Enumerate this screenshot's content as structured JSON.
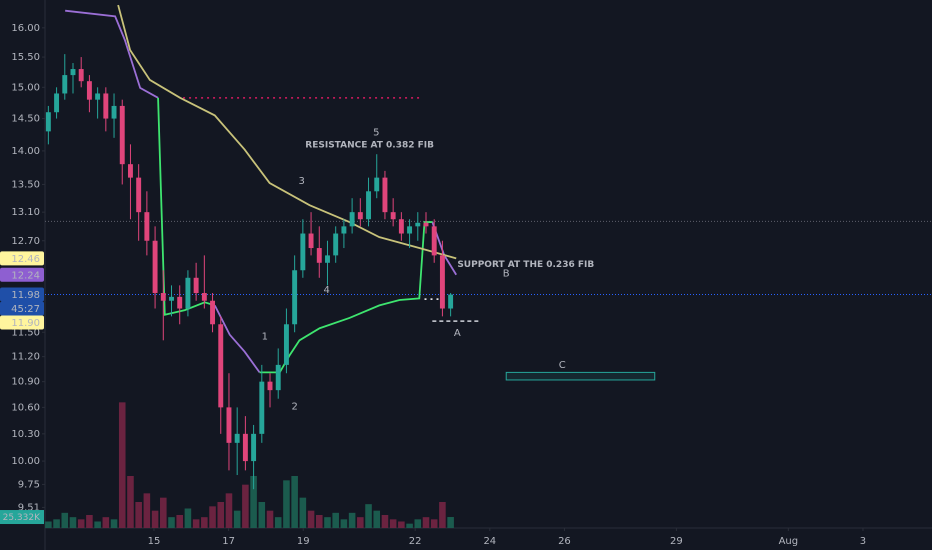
{
  "chart_data": {
    "type": "candlestick",
    "log_scale": true,
    "grid": false,
    "ylim": [
      9.3,
      16.49
    ],
    "yticks": [
      {
        "value": 16,
        "label": "16.00"
      },
      {
        "value": 15.5,
        "label": "15.50"
      },
      {
        "value": 15,
        "label": "15.00"
      },
      {
        "value": 14.5,
        "label": "14.50"
      },
      {
        "value": 14,
        "label": "14.00"
      },
      {
        "value": 13.5,
        "label": "13.50"
      },
      {
        "value": 13.1,
        "label": "13.10"
      },
      {
        "value": 12.7,
        "label": "12.70"
      },
      {
        "value": 11.5,
        "label": "11.50"
      },
      {
        "value": 11.2,
        "label": "11.20"
      },
      {
        "value": 10.9,
        "label": "10.90"
      },
      {
        "value": 10.6,
        "label": "10.60"
      },
      {
        "value": 10.3,
        "label": "10.30"
      },
      {
        "value": 10,
        "label": "10.00"
      },
      9.75,
      9.51
    ],
    "xlim": [
      -2.92,
      20.85
    ],
    "xticks": [
      {
        "value": 0,
        "label": "15"
      },
      {
        "value": 2,
        "label": "17"
      },
      {
        "value": 4,
        "label": "19"
      },
      {
        "value": 7,
        "label": "22"
      },
      {
        "value": 9,
        "label": "24"
      },
      {
        "value": 11,
        "label": "26"
      },
      {
        "value": 14,
        "label": "29"
      },
      {
        "value": 17,
        "label": "Aug"
      },
      {
        "value": 19,
        "label": "3"
      }
    ],
    "up_color": "#26a69a",
    "down_color": "#e0457b",
    "volume_up_color": "#1b5b4e",
    "volume_down_color": "#6b2340",
    "vlim": [
      0,
      300
    ],
    "x": [
      -2.83,
      -2.61,
      -2.39,
      -2.17,
      -1.95,
      -1.73,
      -1.51,
      -1.29,
      -1.07,
      -0.85,
      -0.63,
      -0.41,
      -0.19,
      0.03,
      0.25,
      0.47,
      0.69,
      0.91,
      1.13,
      1.35,
      1.57,
      1.79,
      2.01,
      2.23,
      2.45,
      2.67,
      2.89,
      3.11,
      3.33,
      3.55,
      3.77,
      3.99,
      4.21,
      4.43,
      4.65,
      4.87,
      5.09,
      5.31,
      5.53,
      5.75,
      5.97,
      6.19,
      6.41,
      6.63,
      6.85,
      7.07,
      7.29,
      7.51,
      7.73,
      7.95
    ],
    "open": [
      14.3,
      14.6,
      14.9,
      15.2,
      15.3,
      15.1,
      14.8,
      14.9,
      14.5,
      14.7,
      13.8,
      13.6,
      13.1,
      12.7,
      12.0,
      11.9,
      11.95,
      11.8,
      12.2,
      12.0,
      11.9,
      11.6,
      10.6,
      10.2,
      10.3,
      10.0,
      10.3,
      10.9,
      10.8,
      11.1,
      11.6,
      12.3,
      12.8,
      12.6,
      12.4,
      12.5,
      12.8,
      12.9,
      13.1,
      13.0,
      13.4,
      13.6,
      13.1,
      13.0,
      12.8,
      12.9,
      12.95,
      12.9,
      12.5,
      11.8
    ],
    "high": [
      14.7,
      15.0,
      15.55,
      15.4,
      15.5,
      15.2,
      15.0,
      15.0,
      14.9,
      14.8,
      14.1,
      13.8,
      13.4,
      12.9,
      12.3,
      12.1,
      12.1,
      12.3,
      12.4,
      12.5,
      12.0,
      11.7,
      11.0,
      10.6,
      10.5,
      10.4,
      11.1,
      11.0,
      11.3,
      11.8,
      12.5,
      13.0,
      13.1,
      12.9,
      12.7,
      12.9,
      13.0,
      13.3,
      13.3,
      13.6,
      13.95,
      13.7,
      13.3,
      13.1,
      13.0,
      13.1,
      13.1,
      13.0,
      12.7,
      12.0
    ],
    "low": [
      14.1,
      14.5,
      14.8,
      14.9,
      15.0,
      14.6,
      14.5,
      14.3,
      14.2,
      13.5,
      13.0,
      12.7,
      12.5,
      11.8,
      11.4,
      11.7,
      11.6,
      11.7,
      11.9,
      11.8,
      11.5,
      10.3,
      9.9,
      9.85,
      9.9,
      9.7,
      10.2,
      10.6,
      10.7,
      11.0,
      11.5,
      12.2,
      12.5,
      12.2,
      12.1,
      12.4,
      12.6,
      12.8,
      12.9,
      12.9,
      13.3,
      13.0,
      12.9,
      12.7,
      12.6,
      12.7,
      12.8,
      12.4,
      11.7,
      11.7
    ],
    "close": [
      14.6,
      14.9,
      15.2,
      15.3,
      15.1,
      14.8,
      14.9,
      14.5,
      14.7,
      13.8,
      13.6,
      13.1,
      12.7,
      12.0,
      11.9,
      11.95,
      11.8,
      12.2,
      12.0,
      11.9,
      11.6,
      10.6,
      10.2,
      10.3,
      10.0,
      10.3,
      10.9,
      10.8,
      11.1,
      11.6,
      12.3,
      12.8,
      12.6,
      12.4,
      12.5,
      12.8,
      12.9,
      13.1,
      13.0,
      13.4,
      13.6,
      13.1,
      13.0,
      12.8,
      12.9,
      12.95,
      12.9,
      12.5,
      11.8,
      11.98
    ],
    "volume": [
      15,
      20,
      35,
      25,
      20,
      30,
      15,
      25,
      20,
      290,
      120,
      60,
      80,
      40,
      70,
      25,
      30,
      45,
      20,
      25,
      50,
      60,
      80,
      40,
      100,
      120,
      60,
      40,
      25,
      110,
      120,
      70,
      40,
      30,
      25,
      35,
      20,
      35,
      25,
      55,
      40,
      30,
      20,
      15,
      10,
      20,
      25,
      20,
      60,
      25.332
    ],
    "volume_label": "25.332K",
    "series": [
      {
        "color": "#9b6fd6",
        "x": [
          -2.38,
          -1.04,
          -0.78,
          -0.37,
          0.11,
          null,
          1.63,
          2.03,
          2.43,
          2.83,
          null,
          7.46,
          7.78,
          8.1
        ],
        "values": [
          16.3,
          16.2,
          15.79,
          14.99,
          14.83,
          null,
          11.84,
          11.47,
          11.26,
          11.01,
          null,
          12.96,
          12.5,
          12.24
        ]
      },
      {
        "color": "#3ee56f",
        "x": [
          0.11,
          0.29,
          0.83,
          1.36,
          1.63,
          null,
          2.83,
          3.37,
          3.64,
          3.9,
          4.44,
          5.24,
          6.04,
          6.58,
          7.11,
          7.25,
          7.46
        ],
        "values": [
          14.83,
          11.72,
          11.78,
          11.88,
          11.84,
          null,
          11.01,
          11.01,
          11.22,
          11.4,
          11.55,
          11.68,
          11.84,
          11.91,
          11.93,
          12.96,
          12.96
        ]
      },
      {
        "color": "#c8c27a",
        "x": [
          -0.96,
          -0.64,
          -0.11,
          0.7,
          1.63,
          2.43,
          3.1,
          4.17,
          5.24,
          6.04,
          7.11,
          8.1
        ],
        "values": [
          16.4,
          15.62,
          15.12,
          14.83,
          14.55,
          14.02,
          13.52,
          13.2,
          12.96,
          12.75,
          12.6,
          12.46
        ]
      }
    ],
    "segments": [
      {
        "x": [
          0.78,
          7.19
        ],
        "price": 14.83,
        "color": "#d81b60",
        "dash": "2 4"
      },
      {
        "x": [
          7.25,
          7.78
        ],
        "price": 11.92,
        "color": "#ffffff",
        "dash": "2 4"
      },
      {
        "x": [
          7.46,
          8.72
        ],
        "price": 11.64,
        "color": "#d1d4dc",
        "dash": "4 3"
      }
    ],
    "hlines": [
      {
        "price": 12.97,
        "color": "#5d606b"
      },
      {
        "price": 11.98,
        "color": "#2962ff"
      }
    ],
    "box": {
      "x": [
        9.44,
        13.42
      ],
      "price": [
        10.92,
        11.01
      ],
      "color": "#26a69a"
    },
    "annotations": [
      {
        "text": "RESISTANCE AT 0.382 FIB",
        "x": 5.78,
        "price": 14.09,
        "color": "#b2b5be",
        "anchor": "middle"
      },
      {
        "text": "SUPPORT AT THE 0.236 FIB",
        "x": 8.13,
        "price": 12.38,
        "color": "#b2b5be",
        "anchor": "start"
      },
      {
        "text": "1",
        "x": 2.97,
        "price": 11.45,
        "color": "#e6d36b",
        "anchor": "middle"
      },
      {
        "text": "2",
        "x": 3.77,
        "price": 10.61,
        "color": "#e6d36b",
        "anchor": "middle"
      },
      {
        "text": "3",
        "x": 3.96,
        "price": 13.55,
        "color": "#e6d36b",
        "anchor": "middle"
      },
      {
        "text": "4",
        "x": 4.63,
        "price": 12.04,
        "color": "#e6d36b",
        "anchor": "middle"
      },
      {
        "text": "5",
        "x": 5.96,
        "price": 14.28,
        "color": "#e6d36b",
        "anchor": "middle"
      },
      {
        "text": "A",
        "x": 8.13,
        "price": 11.49,
        "color": "#d1d4dc",
        "anchor": "middle"
      },
      {
        "text": "B",
        "x": 9.44,
        "price": 12.26,
        "color": "#d1d4dc",
        "anchor": "middle"
      },
      {
        "text": "C",
        "x": 10.94,
        "price": 11.1,
        "color": "#d1d4dc",
        "anchor": "middle"
      }
    ],
    "price_labels": [
      {
        "value": 12.46,
        "label": "12.46",
        "color": "#fff59d",
        "text_color": "#131722"
      },
      {
        "value": 12.24,
        "label": "12.24",
        "color": "#8e5fd1",
        "text_color": "#ffffff"
      },
      {
        "value": 11.98,
        "label": "11.98",
        "color": "#1f4fa8",
        "text_color": "#ffffff"
      },
      {
        "value": 11.9,
        "label": "11.90",
        "color": "#fff59d",
        "text_color": "#131722"
      }
    ],
    "countdown": "45:27"
  }
}
